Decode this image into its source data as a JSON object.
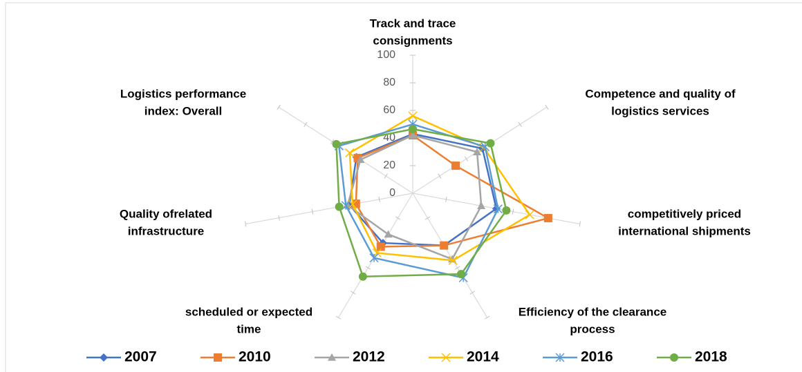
{
  "chart_data": {
    "type": "radar",
    "categories": [
      [
        "Track and trace",
        "consignments"
      ],
      [
        "Competence and quality of",
        "logistics services"
      ],
      [
        "competitively priced",
        "international shipments"
      ],
      [
        "Efficiency of the clearance",
        "process"
      ],
      [
        "scheduled or expected",
        "time"
      ],
      [
        "Quality ofrelated",
        "infrastructure"
      ],
      [
        "Logistics performance",
        "index: Overall"
      ]
    ],
    "ylim": [
      0,
      100
    ],
    "yticks": [
      0,
      20,
      40,
      60,
      80,
      100
    ],
    "series": [
      {
        "name": "2007",
        "color": "#4472c4",
        "marker": "diamond",
        "values": [
          43,
          52,
          50,
          42,
          40,
          38,
          42
        ]
      },
      {
        "name": "2010",
        "color": "#ed7d31",
        "marker": "square",
        "values": [
          42,
          32,
          81,
          42,
          43,
          34,
          41
        ]
      },
      {
        "name": "2012",
        "color": "#a5a5a5",
        "marker": "triangle",
        "values": [
          42,
          48,
          41,
          53,
          33,
          39,
          39
        ]
      },
      {
        "name": "2014",
        "color": "#ffc000",
        "marker": "x",
        "values": [
          56,
          53,
          70,
          54,
          48,
          36,
          47
        ]
      },
      {
        "name": "2016",
        "color": "#5b9bd5",
        "marker": "star",
        "values": [
          50,
          54,
          51,
          68,
          52,
          40,
          55
        ]
      },
      {
        "name": "2018",
        "color": "#70ad47",
        "marker": "circle",
        "values": [
          46.5,
          58,
          56,
          65,
          67,
          44,
          57
        ]
      }
    ]
  }
}
